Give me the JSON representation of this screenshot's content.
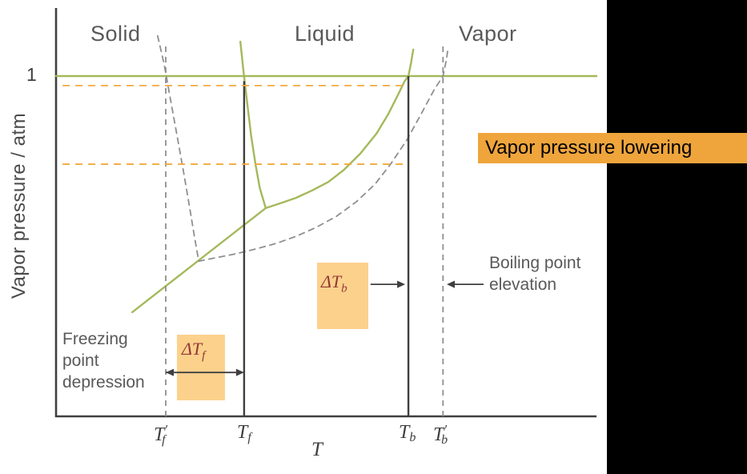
{
  "colors": {
    "axis": "#3f3f3f",
    "green_curve": "#a4b95b",
    "gray_dashed": "#8f8f8f",
    "dark_line": "#3f3f3f",
    "orange_guide": "#f2a93d",
    "highlight_light": "#fbd18c",
    "highlight_strong": "#efa53c",
    "label_gray": "#595959",
    "delta_red": "#943734",
    "side_panel": "#000000"
  },
  "labels": {
    "regions": {
      "solid": "Solid",
      "liquid": "Liquid",
      "vapor": "Vapor"
    },
    "y_axis": "Vapor pressure / atm",
    "y_tick_one": "1",
    "x_axis": "T",
    "tick_tf_prime": {
      "base": "T",
      "prime": "′",
      "sub": "f"
    },
    "tick_tf": {
      "base": "T",
      "sub": "f"
    },
    "tick_tb": {
      "base": "T",
      "sub": "b"
    },
    "tick_tb_prime": {
      "base": "T",
      "prime": "′",
      "sub": "b"
    },
    "delta_tf": {
      "base": "ΔT",
      "sub": "f"
    },
    "delta_tb": {
      "base": "ΔT",
      "sub": "b"
    },
    "freezing_point_depression": "Freezing point depression",
    "boiling_point_elevation": "Boiling point elevation",
    "vapor_pressure_lowering": "Vapor pressure lowering"
  },
  "chart_data": {
    "type": "line",
    "xlabel": "T",
    "ylabel": "Vapor pressure / atm",
    "xlim": [
      0,
      1
    ],
    "ylim": [
      0,
      1.2
    ],
    "y_ticks": [
      {
        "p": 1,
        "label": "1"
      }
    ],
    "x_ticks": [
      {
        "x": 0.203,
        "label": "T′f"
      },
      {
        "x": 0.348,
        "label": "Tf"
      },
      {
        "x": 0.652,
        "label": "Tb"
      },
      {
        "x": 0.716,
        "label": "T′b"
      }
    ],
    "region_labels": [
      "Solid",
      "Liquid",
      "Vapor"
    ],
    "series": [
      {
        "name": "one-atm-line",
        "color": "#a4b95b",
        "dash": null,
        "width": 2.4,
        "points": [
          [
            0,
            1
          ],
          [
            1,
            1
          ]
        ]
      },
      {
        "name": "pure-solvent-sublimation-curve",
        "color": "#a4b95b",
        "dash": null,
        "width": 2.4,
        "points": [
          [
            0.141,
            0.306
          ],
          [
            0.388,
            0.612
          ]
        ]
      },
      {
        "name": "pure-solvent-fusion-curve",
        "color": "#a4b95b",
        "dash": null,
        "width": 2.4,
        "points": [
          [
            0.341,
            1.101
          ],
          [
            0.347,
            1.012
          ],
          [
            0.354,
            0.918
          ],
          [
            0.361,
            0.824
          ],
          [
            0.369,
            0.741
          ],
          [
            0.377,
            0.671
          ],
          [
            0.388,
            0.612
          ]
        ]
      },
      {
        "name": "pure-solvent-vaporization-curve",
        "color": "#a4b95b",
        "dash": null,
        "width": 2.4,
        "points": [
          [
            0.388,
            0.612
          ],
          [
            0.415,
            0.626
          ],
          [
            0.444,
            0.642
          ],
          [
            0.474,
            0.664
          ],
          [
            0.504,
            0.689
          ],
          [
            0.533,
            0.725
          ],
          [
            0.563,
            0.772
          ],
          [
            0.593,
            0.831
          ],
          [
            0.615,
            0.889
          ],
          [
            0.633,
            0.946
          ],
          [
            0.645,
            0.985
          ],
          [
            0.652,
            1.0
          ],
          [
            0.657,
            1.04
          ],
          [
            0.661,
            1.078
          ]
        ]
      },
      {
        "name": "solution-fusion-curve",
        "color": "#8f8f8f",
        "dash": "7,6",
        "width": 1.8,
        "points": [
          [
            0.188,
            1.118
          ],
          [
            0.2,
            1.035
          ],
          [
            0.212,
            0.929
          ],
          [
            0.224,
            0.824
          ],
          [
            0.236,
            0.718
          ],
          [
            0.247,
            0.616
          ],
          [
            0.256,
            0.529
          ],
          [
            0.264,
            0.456
          ]
        ]
      },
      {
        "name": "solution-vaporization-curve",
        "color": "#8f8f8f",
        "dash": "7,6",
        "width": 1.8,
        "points": [
          [
            0.264,
            0.456
          ],
          [
            0.296,
            0.466
          ],
          [
            0.333,
            0.478
          ],
          [
            0.37,
            0.492
          ],
          [
            0.407,
            0.508
          ],
          [
            0.444,
            0.529
          ],
          [
            0.481,
            0.555
          ],
          [
            0.519,
            0.588
          ],
          [
            0.556,
            0.631
          ],
          [
            0.59,
            0.682
          ],
          [
            0.619,
            0.741
          ],
          [
            0.649,
            0.812
          ],
          [
            0.676,
            0.89
          ],
          [
            0.699,
            0.958
          ],
          [
            0.716,
            1.0
          ],
          [
            0.722,
            1.045
          ],
          [
            0.725,
            1.078
          ]
        ]
      }
    ],
    "guide_lines": {
      "verticals": [
        {
          "name": "tf-prime-guide",
          "x": 0.203,
          "p_top": 1.094,
          "dash": "7,6",
          "color": "#8f8f8f",
          "width": 1.8
        },
        {
          "name": "tf-guide",
          "x": 0.348,
          "p_top": 0.985,
          "dash": null,
          "color": "#3f3f3f",
          "width": 2.4
        },
        {
          "name": "tb-guide",
          "x": 0.652,
          "p_top": 1.0,
          "dash": null,
          "color": "#3f3f3f",
          "width": 2.4
        },
        {
          "name": "tb-prime-guide",
          "x": 0.716,
          "p_top": 1.094,
          "dash": "7,6",
          "color": "#8f8f8f",
          "width": 1.8
        }
      ],
      "horizontals": [
        {
          "name": "pure-solvent-vp-guide",
          "p": 0.972,
          "x1": 0.012,
          "x2": 0.649,
          "dash": "9,7",
          "color": "#f2a93d",
          "width": 1.8
        },
        {
          "name": "solution-vp-guide",
          "p": 0.741,
          "x1": 0.012,
          "x2": 0.649,
          "dash": "9,7",
          "color": "#f2a93d",
          "width": 1.8
        }
      ]
    },
    "arrows": [
      {
        "name": "freezing-depression-arrow",
        "p": 0.129,
        "x1": 0.203,
        "x2": 0.348,
        "heads": "both",
        "color": "#3f3f3f",
        "width": 1.8
      },
      {
        "name": "delta-tb-arrow",
        "p": 0.388,
        "x1": 0.582,
        "x2": 0.646,
        "heads": "end",
        "color": "#3f3f3f",
        "width": 1.8
      },
      {
        "name": "boiling-elevation-pointer-arrow",
        "p": 0.388,
        "x1": 0.791,
        "x2": 0.723,
        "heads": "end",
        "color": "#3f3f3f",
        "width": 1.8
      }
    ]
  }
}
